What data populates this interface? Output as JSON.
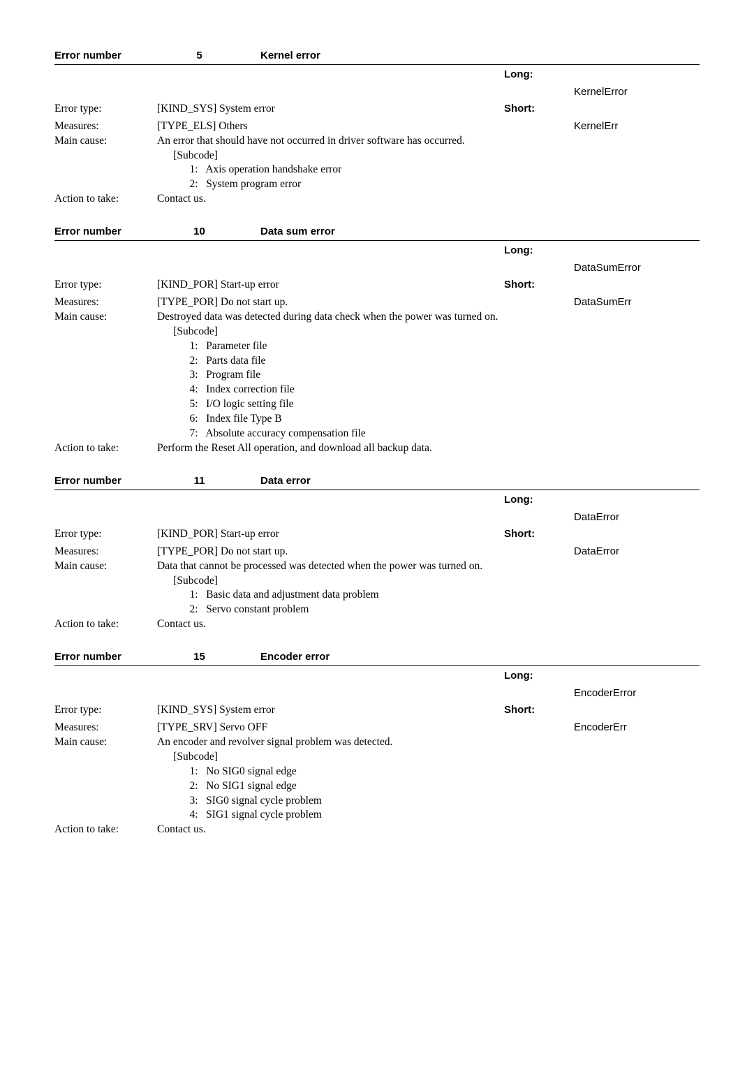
{
  "labels": {
    "error_number": "Error number",
    "long": "Long:",
    "short": "Short:",
    "error_type": "Error type:",
    "measures": "Measures:",
    "main_cause": "Main cause:",
    "action": "Action to take:",
    "subcode": "[Subcode]"
  },
  "errors": [
    {
      "number": "5",
      "title": "Kernel error",
      "long": "KernelError",
      "short": "KernelErr",
      "error_type": "[KIND_SYS] System error",
      "measures": "[TYPE_ELS] Others",
      "main_cause": "An error that should have not occurred in driver software has occurred.",
      "subcodes": [
        "1:   Axis operation handshake error",
        "2:   System program error"
      ],
      "action": "Contact us."
    },
    {
      "number": "10",
      "title": "Data sum error",
      "long": "DataSumError",
      "short": "DataSumErr",
      "error_type": "[KIND_POR] Start-up error",
      "measures": "[TYPE_POR] Do not start up.",
      "main_cause": "Destroyed data was detected during data check when the power was turned on.",
      "subcodes": [
        "1:   Parameter file",
        "2:   Parts data file",
        "3:   Program file",
        "4:   Index correction file",
        "5:   I/O logic setting file",
        "6:   Index file Type B",
        "7:   Absolute accuracy compensation file"
      ],
      "action": "Perform the Reset All operation, and download all backup data."
    },
    {
      "number": "11",
      "title": "Data error",
      "long": "DataError",
      "short": "DataError",
      "error_type": "[KIND_POR] Start-up error",
      "measures": "[TYPE_POR] Do not start up.",
      "main_cause": "Data that cannot be processed was detected when the power was turned on.",
      "subcodes": [
        "1:   Basic data and adjustment data problem",
        "2:   Servo constant problem"
      ],
      "action": "Contact us."
    },
    {
      "number": "15",
      "title": "Encoder error",
      "long": "EncoderError",
      "short": "EncoderErr",
      "error_type": "[KIND_SYS] System error",
      "measures": "[TYPE_SRV] Servo OFF",
      "main_cause": "An encoder and revolver signal problem was detected.",
      "subcodes": [
        "1:   No SIG0 signal edge",
        "2:   No SIG1 signal edge",
        "3:   SIG0 signal cycle problem",
        "4:   SIG1 signal cycle problem"
      ],
      "action": "Contact us."
    }
  ]
}
